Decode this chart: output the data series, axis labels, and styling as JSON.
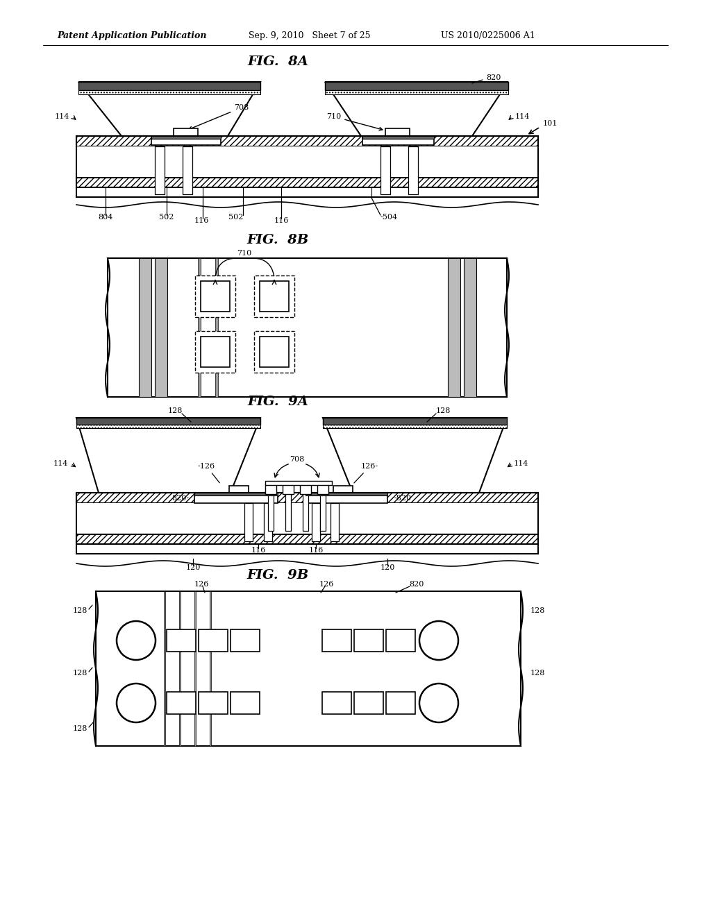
{
  "bg_color": "#ffffff",
  "header_left": "Patent Application Publication",
  "header_center": "Sep. 9, 2010   Sheet 7 of 25",
  "header_right": "US 2010/0225006 A1"
}
